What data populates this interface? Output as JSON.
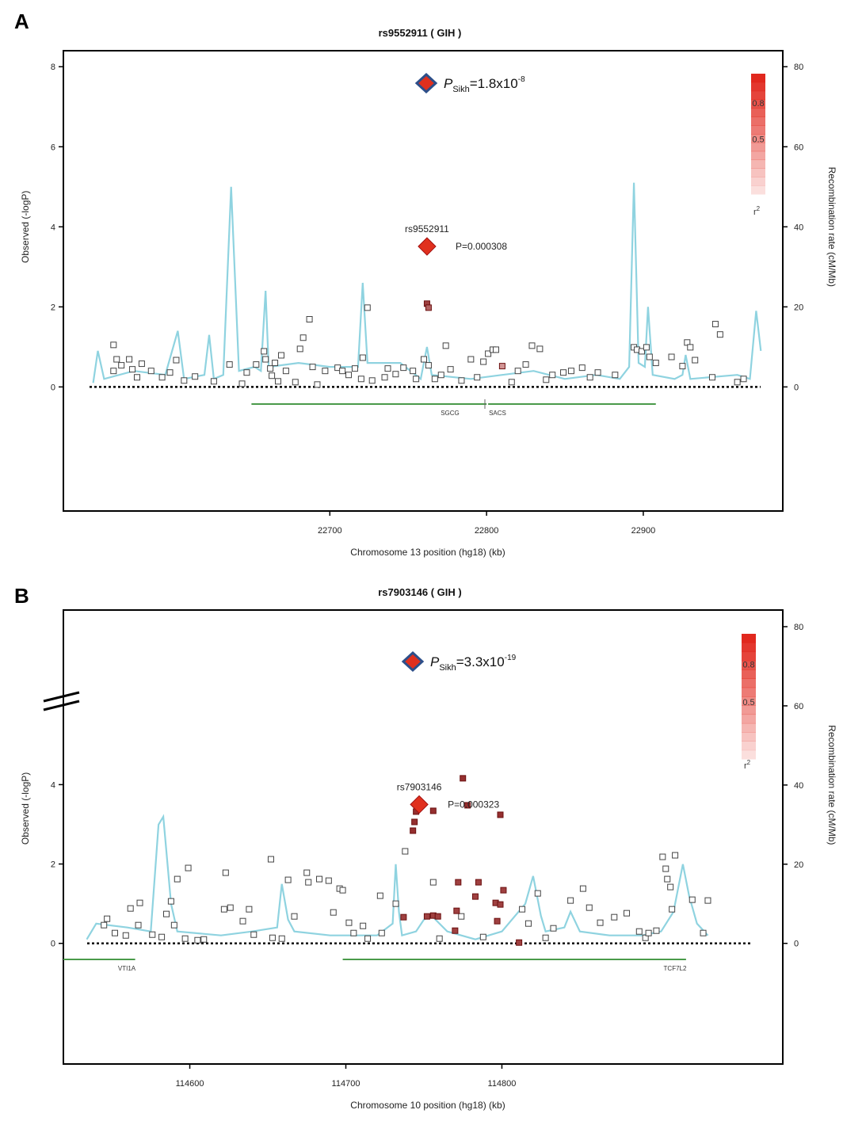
{
  "colors": {
    "recombination": "#8fd3e0",
    "gene": "#4a9a4a",
    "lead": "#e0301e",
    "meta_diamond_edge": "#2d4f8a",
    "ld_high": "#b01e1e",
    "point_edge": "#444444"
  },
  "chart_data": [
    {
      "panel_label": "A",
      "type": "scatter",
      "title": "rs9552911 ( GIH )",
      "xlabel": "Chromosome 13 position (hg18) (kb)",
      "ylabel": "Observed (-logP)",
      "ylabel_right": "Recombination rate (cM/Mb)",
      "xlim": [
        22530,
        22989
      ],
      "ylim": [
        -3.1,
        8.4
      ],
      "x_ticks": [
        22700,
        22800,
        22900
      ],
      "y_ticks": [
        0,
        2,
        4,
        6,
        8
      ],
      "y2_ticks": [
        0,
        20,
        40,
        60,
        80
      ],
      "y2lim": [
        0,
        80
      ],
      "axis_break": false,
      "meta_annotation": {
        "text_main": "P",
        "text_sub": "Sikh",
        "text_value": "=1.8x10",
        "text_exp": "-8"
      },
      "lead_snp": {
        "name": "rs9552911",
        "label": "P=0.000308",
        "x": 22762,
        "y": 3.51
      },
      "legend": {
        "title": "r",
        "title_sup": "2",
        "ticks": [
          "0.8",
          "0.5"
        ]
      },
      "genes": [
        {
          "name": "SGCG",
          "start": 22650,
          "end": 22800
        },
        {
          "name": "SACS",
          "start": 22801,
          "end": 22908
        }
      ],
      "points": [
        [
          22562,
          1.05,
          0
        ],
        [
          22564,
          0.69,
          0
        ],
        [
          22572,
          0.69,
          0
        ],
        [
          22567,
          0.54,
          0
        ],
        [
          22562,
          0.4,
          0
        ],
        [
          22574,
          0.44,
          0
        ],
        [
          22580,
          0.58,
          0
        ],
        [
          22586,
          0.4,
          0
        ],
        [
          22577,
          0.24,
          0
        ],
        [
          22593,
          0.24,
          0
        ],
        [
          22598,
          0.36,
          0
        ],
        [
          22602,
          0.67,
          0
        ],
        [
          22607,
          0.16,
          0
        ],
        [
          22614,
          0.26,
          0
        ],
        [
          22626,
          0.14,
          0
        ],
        [
          22636,
          0.56,
          0
        ],
        [
          22644,
          0.08,
          0
        ],
        [
          22647,
          0.36,
          0
        ],
        [
          22653,
          0.56,
          0
        ],
        [
          22658,
          0.89,
          0
        ],
        [
          22659,
          0.69,
          0
        ],
        [
          22662,
          0.46,
          0
        ],
        [
          22663,
          0.28,
          0
        ],
        [
          22665,
          0.6,
          0
        ],
        [
          22667,
          0.14,
          0
        ],
        [
          22669,
          0.79,
          0
        ],
        [
          22672,
          0.4,
          0
        ],
        [
          22678,
          0.12,
          0
        ],
        [
          22681,
          0.95,
          0
        ],
        [
          22683,
          1.23,
          0
        ],
        [
          22687,
          1.69,
          0
        ],
        [
          22689,
          0.5,
          0
        ],
        [
          22692,
          0.06,
          0
        ],
        [
          22697,
          0.4,
          0
        ],
        [
          22705,
          0.48,
          0
        ],
        [
          22708,
          0.4,
          0
        ],
        [
          22712,
          0.3,
          0
        ],
        [
          22716,
          0.46,
          0
        ],
        [
          22720,
          0.2,
          0
        ],
        [
          22721,
          0.73,
          0
        ],
        [
          22724,
          1.98,
          0
        ],
        [
          22727,
          0.16,
          0
        ],
        [
          22735,
          0.24,
          0
        ],
        [
          22737,
          0.46,
          0
        ],
        [
          22742,
          0.32,
          0
        ],
        [
          22747,
          0.48,
          0
        ],
        [
          22753,
          0.4,
          0
        ],
        [
          22755,
          0.2,
          0
        ],
        [
          22760,
          0.69,
          0
        ],
        [
          22763,
          0.54,
          0
        ],
        [
          22767,
          0.2,
          0
        ],
        [
          22771,
          0.3,
          0
        ],
        [
          22774,
          1.03,
          0
        ],
        [
          22777,
          0.44,
          0
        ],
        [
          22784,
          0.16,
          0
        ],
        [
          22790,
          0.69,
          0
        ],
        [
          22794,
          0.24,
          0
        ],
        [
          22798,
          0.63,
          0
        ],
        [
          22801,
          0.83,
          0
        ],
        [
          22804,
          0.93,
          0
        ],
        [
          22806,
          0.93,
          0
        ],
        [
          22810,
          0.52,
          0.3
        ],
        [
          22816,
          0.12,
          0
        ],
        [
          22820,
          0.4,
          0
        ],
        [
          22825,
          0.56,
          0
        ],
        [
          22829,
          1.03,
          0
        ],
        [
          22834,
          0.95,
          0
        ],
        [
          22838,
          0.18,
          0
        ],
        [
          22842,
          0.3,
          0
        ],
        [
          22849,
          0.36,
          0
        ],
        [
          22854,
          0.4,
          0
        ],
        [
          22861,
          0.48,
          0
        ],
        [
          22866,
          0.24,
          0
        ],
        [
          22871,
          0.36,
          0
        ],
        [
          22882,
          0.3,
          0
        ],
        [
          22894,
          0.99,
          0
        ],
        [
          22896,
          0.93,
          0
        ],
        [
          22899,
          0.89,
          0
        ],
        [
          22902,
          0.99,
          0
        ],
        [
          22904,
          0.75,
          0
        ],
        [
          22908,
          0.6,
          0
        ],
        [
          22918,
          0.75,
          0
        ],
        [
          22925,
          0.52,
          0
        ],
        [
          22928,
          1.11,
          0
        ],
        [
          22930,
          0.99,
          0
        ],
        [
          22933,
          0.67,
          0
        ],
        [
          22944,
          0.24,
          0
        ],
        [
          22946,
          1.57,
          0
        ],
        [
          22949,
          1.31,
          0
        ],
        [
          22960,
          0.12,
          0
        ],
        [
          22964,
          0.2,
          0
        ],
        [
          22762,
          2.08,
          0.8
        ],
        [
          22763,
          1.98,
          0.6
        ]
      ],
      "recombination": [
        [
          22549,
          1
        ],
        [
          22552,
          9
        ],
        [
          22556,
          2
        ],
        [
          22575,
          4
        ],
        [
          22595,
          3
        ],
        [
          22603,
          14
        ],
        [
          22607,
          2
        ],
        [
          22620,
          3
        ],
        [
          22623,
          13
        ],
        [
          22626,
          2
        ],
        [
          22632,
          3
        ],
        [
          22637,
          50
        ],
        [
          22642,
          4
        ],
        [
          22652,
          5
        ],
        [
          22656,
          4
        ],
        [
          22659,
          24
        ],
        [
          22661,
          5
        ],
        [
          22680,
          6
        ],
        [
          22700,
          5
        ],
        [
          22718,
          5
        ],
        [
          22721,
          26
        ],
        [
          22724,
          6
        ],
        [
          22745,
          6
        ],
        [
          22758,
          2
        ],
        [
          22762,
          10
        ],
        [
          22765,
          3
        ],
        [
          22790,
          2
        ],
        [
          22810,
          3
        ],
        [
          22830,
          4
        ],
        [
          22850,
          2
        ],
        [
          22870,
          3
        ],
        [
          22885,
          2
        ],
        [
          22891,
          5
        ],
        [
          22894,
          51
        ],
        [
          22897,
          6
        ],
        [
          22901,
          5
        ],
        [
          22903,
          20
        ],
        [
          22906,
          3
        ],
        [
          22920,
          2
        ],
        [
          22925,
          3
        ],
        [
          22927,
          8
        ],
        [
          22930,
          2
        ],
        [
          22960,
          3
        ],
        [
          22968,
          2
        ],
        [
          22972,
          19
        ],
        [
          22975,
          9
        ]
      ]
    },
    {
      "panel_label": "B",
      "type": "scatter",
      "title": "rs7903146 ( GIH )",
      "xlabel": "Chromosome 10 position (hg18) (kb)",
      "ylabel": "Observed (-logP)",
      "ylabel_right": "Recombination rate (cM/Mb)",
      "xlim": [
        114519,
        114980
      ],
      "ylim": [
        -3.04,
        8.4
      ],
      "x_ticks": [
        114600,
        114700,
        114800
      ],
      "y_ticks": [
        0,
        2,
        4
      ],
      "y2_ticks": [
        0,
        20,
        40,
        60,
        80
      ],
      "y2lim": [
        0,
        80
      ],
      "axis_break": true,
      "meta_annotation": {
        "text_main": "P",
        "text_sub": "Sikh",
        "text_value": "=3.3x10",
        "text_exp": "-19"
      },
      "lead_snp": {
        "name": "rs7903146",
        "label": "P=0.000323",
        "x": 114747,
        "y": 3.5
      },
      "legend": {
        "title": "r",
        "title_sup": "2",
        "ticks": [
          "0.8",
          "0.5"
        ]
      },
      "genes": [
        {
          "name": "VTI1A",
          "start": 114519,
          "end": 114565
        },
        {
          "name": "TCF7L2",
          "start": 114698,
          "end": 114918
        }
      ],
      "points": [
        [
          114547,
          0.62,
          0
        ],
        [
          114545,
          0.46,
          0
        ],
        [
          114552,
          0.26,
          0
        ],
        [
          114559,
          0.2,
          0
        ],
        [
          114567,
          0.46,
          0
        ],
        [
          114568,
          1.02,
          0
        ],
        [
          114562,
          0.88,
          0
        ],
        [
          114576,
          0.22,
          0
        ],
        [
          114582,
          0.16,
          0
        ],
        [
          114585,
          0.74,
          0
        ],
        [
          114588,
          1.06,
          0
        ],
        [
          114592,
          1.62,
          0
        ],
        [
          114599,
          1.9,
          0
        ],
        [
          114590,
          0.46,
          0
        ],
        [
          114597,
          0.12,
          0
        ],
        [
          114605,
          0.08,
          0
        ],
        [
          114609,
          0.1,
          0
        ],
        [
          114623,
          1.78,
          0
        ],
        [
          114622,
          0.86,
          0
        ],
        [
          114626,
          0.9,
          0
        ],
        [
          114634,
          0.56,
          0
        ],
        [
          114638,
          0.86,
          0
        ],
        [
          114641,
          0.22,
          0
        ],
        [
          114652,
          2.12,
          0
        ],
        [
          114653,
          0.14,
          0
        ],
        [
          114659,
          0.12,
          0
        ],
        [
          114663,
          1.6,
          0
        ],
        [
          114667,
          0.68,
          0
        ],
        [
          114675,
          1.78,
          0
        ],
        [
          114676,
          1.54,
          0
        ],
        [
          114683,
          1.62,
          0
        ],
        [
          114689,
          1.58,
          0
        ],
        [
          114692,
          0.78,
          0
        ],
        [
          114696,
          1.38,
          0
        ],
        [
          114698,
          1.34,
          0
        ],
        [
          114702,
          0.52,
          0
        ],
        [
          114705,
          0.26,
          0
        ],
        [
          114711,
          0.44,
          0
        ],
        [
          114714,
          0.12,
          0
        ],
        [
          114722,
          1.2,
          0
        ],
        [
          114723,
          0.26,
          0
        ],
        [
          114732,
          1.0,
          0
        ],
        [
          114738,
          2.32,
          0
        ],
        [
          114756,
          1.54,
          0
        ],
        [
          114760,
          0.12,
          0
        ],
        [
          114774,
          0.68,
          0
        ],
        [
          114788,
          0.16,
          0
        ],
        [
          114813,
          0.86,
          0
        ],
        [
          114817,
          0.5,
          0
        ],
        [
          114823,
          1.26,
          0
        ],
        [
          114828,
          0.14,
          0
        ],
        [
          114833,
          0.38,
          0
        ],
        [
          114844,
          1.08,
          0
        ],
        [
          114852,
          1.38,
          0
        ],
        [
          114856,
          0.9,
          0
        ],
        [
          114863,
          0.52,
          0
        ],
        [
          114872,
          0.66,
          0
        ],
        [
          114880,
          0.76,
          0
        ],
        [
          114888,
          0.3,
          0
        ],
        [
          114892,
          0.14,
          0
        ],
        [
          114894,
          0.26,
          0
        ],
        [
          114903,
          2.18,
          0
        ],
        [
          114911,
          2.22,
          0
        ],
        [
          114905,
          1.88,
          0
        ],
        [
          114906,
          1.62,
          0
        ],
        [
          114908,
          1.42,
          0
        ],
        [
          114909,
          0.86,
          0
        ],
        [
          114922,
          1.1,
          0
        ],
        [
          114932,
          1.08,
          0
        ],
        [
          114929,
          0.26,
          0
        ],
        [
          114899,
          0.32,
          0
        ],
        [
          114775,
          4.16,
          0.9
        ],
        [
          114745,
          3.32,
          0.9
        ],
        [
          114756,
          3.34,
          0.9
        ],
        [
          114744,
          3.06,
          0.9
        ],
        [
          114743,
          2.84,
          0.9
        ],
        [
          114778,
          3.48,
          0.9
        ],
        [
          114799,
          3.24,
          0.9
        ],
        [
          114772,
          1.54,
          0.8
        ],
        [
          114785,
          1.54,
          0.8
        ],
        [
          114783,
          1.18,
          0.8
        ],
        [
          114801,
          1.34,
          0.8
        ],
        [
          114796,
          1.02,
          0.8
        ],
        [
          114799,
          0.98,
          0.8
        ],
        [
          114797,
          0.56,
          0.8
        ],
        [
          114771,
          0.82,
          0.8
        ],
        [
          114756,
          0.7,
          0.8
        ],
        [
          114752,
          0.68,
          0.8
        ],
        [
          114759,
          0.68,
          0.8
        ],
        [
          114770,
          0.32,
          0.8
        ],
        [
          114737,
          0.66,
          0.8
        ],
        [
          114811,
          0.02,
          0.8
        ]
      ],
      "recombination": [
        [
          114534,
          1
        ],
        [
          114540,
          5
        ],
        [
          114560,
          4
        ],
        [
          114575,
          3
        ],
        [
          114580,
          30
        ],
        [
          114583,
          32
        ],
        [
          114588,
          10
        ],
        [
          114592,
          3
        ],
        [
          114620,
          2
        ],
        [
          114640,
          3
        ],
        [
          114656,
          4
        ],
        [
          114659,
          15
        ],
        [
          114663,
          6
        ],
        [
          114667,
          3
        ],
        [
          114690,
          2
        ],
        [
          114720,
          2
        ],
        [
          114730,
          5
        ],
        [
          114732,
          20
        ],
        [
          114734,
          8
        ],
        [
          114736,
          2
        ],
        [
          114745,
          3
        ],
        [
          114750,
          6
        ],
        [
          114755,
          7
        ],
        [
          114765,
          3
        ],
        [
          114783,
          1
        ],
        [
          114800,
          3
        ],
        [
          114815,
          10
        ],
        [
          114820,
          17
        ],
        [
          114825,
          7
        ],
        [
          114828,
          3
        ],
        [
          114840,
          4
        ],
        [
          114844,
          8
        ],
        [
          114850,
          3
        ],
        [
          114869,
          2
        ],
        [
          114890,
          2
        ],
        [
          114902,
          3
        ],
        [
          114910,
          8
        ],
        [
          114916,
          20
        ],
        [
          114920,
          12
        ],
        [
          114925,
          5
        ],
        [
          114932,
          2
        ]
      ]
    }
  ]
}
